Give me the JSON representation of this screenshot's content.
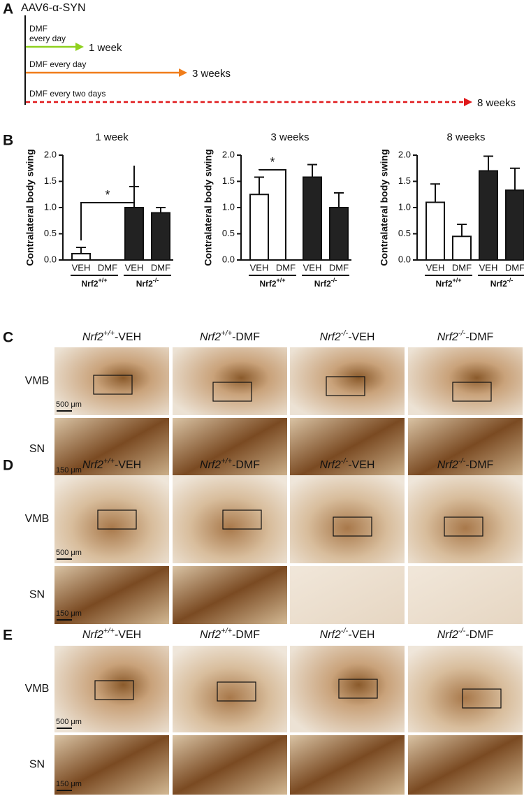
{
  "timeline": {
    "label": "A",
    "vector": "AAV6-α-SYN",
    "arrows": [
      {
        "treatment": [
          "DMF",
          "every day"
        ],
        "duration": "1 week",
        "color": "#8fd11f"
      },
      {
        "treatment": [
          "DMF every day"
        ],
        "duration": "3 weeks",
        "color": "#f07d1a"
      },
      {
        "treatment": [
          "DMF every two days"
        ],
        "duration": "8 weeks",
        "color": "#e0191b",
        "dashed": true
      }
    ]
  },
  "bar_panel_label": "B",
  "chart_data": [
    {
      "type": "bar",
      "title": "1 week",
      "y_label": "Contralateral body swing",
      "categories": [
        "VEH",
        "DMF",
        "VEH",
        "DMF"
      ],
      "values": [
        0.12,
        0,
        1.0,
        0.9
      ],
      "errors": [
        0.12,
        0,
        0.4,
        0.1
      ],
      "colors": [
        "#ffffff",
        "#ffffff",
        "#222222",
        "#222222"
      ],
      "groups": [
        {
          "name": "Nrf2",
          "sup": "+/+"
        },
        {
          "name": "Nrf2",
          "sup": "-/-"
        }
      ],
      "annotations": [
        "*"
      ],
      "ylim": [
        0,
        2
      ],
      "yticks": [
        {
          "value": 0,
          "label": "0.0"
        },
        {
          "value": 0.5,
          "label": "0.5"
        },
        {
          "value": 1,
          "label": "1.0"
        },
        {
          "value": 1.5,
          "label": "1.5"
        },
        {
          "value": 2,
          "label": "2.0"
        }
      ]
    },
    {
      "type": "bar",
      "title": "3 weeks",
      "y_label": "Contralateral body swing",
      "categories": [
        "VEH",
        "DMF",
        "VEH",
        "DMF"
      ],
      "values": [
        1.25,
        0,
        1.58,
        1.0
      ],
      "errors": [
        0.33,
        0,
        0.24,
        0.28
      ],
      "colors": [
        "#ffffff",
        "#ffffff",
        "#222222",
        "#222222"
      ],
      "groups": [
        {
          "name": "Nrf2",
          "sup": "+/+"
        },
        {
          "name": "Nrf2",
          "sup": "-/-"
        }
      ],
      "annotations": [
        "*"
      ],
      "ylim": [
        0,
        2
      ],
      "yticks": [
        {
          "value": 0,
          "label": "0.0"
        },
        {
          "value": 0.5,
          "label": "0.5"
        },
        {
          "value": 1,
          "label": "1.0"
        },
        {
          "value": 1.5,
          "label": "1.5"
        },
        {
          "value": 2,
          "label": "2.0"
        }
      ]
    },
    {
      "type": "bar",
      "title": "8 weeks",
      "y_label": "Contralateral body swing",
      "categories": [
        "VEH",
        "DMF",
        "VEH",
        "DMF"
      ],
      "values": [
        1.1,
        0.45,
        1.7,
        1.33
      ],
      "errors": [
        0.35,
        0.23,
        0.28,
        0.42
      ],
      "colors": [
        "#ffffff",
        "#ffffff",
        "#222222",
        "#222222"
      ],
      "groups": [
        {
          "name": "Nrf2",
          "sup": "+/+"
        },
        {
          "name": "Nrf2",
          "sup": "-/-"
        }
      ],
      "annotations": [],
      "ylim": [
        0,
        2
      ],
      "yticks": [
        {
          "value": 0,
          "label": "0.0"
        },
        {
          "value": 0.5,
          "label": "0.5"
        },
        {
          "value": 1,
          "label": "1.0"
        },
        {
          "value": 1.5,
          "label": "1.5"
        },
        {
          "value": 2,
          "label": "2.0"
        }
      ]
    }
  ],
  "image_panels": [
    {
      "label": "C",
      "columns": [
        {
          "gene": "Nrf2",
          "sup": "+/+",
          "suffix": "-VEH"
        },
        {
          "gene": "Nrf2",
          "sup": "+/+",
          "suffix": "-DMF"
        },
        {
          "gene": "Nrf2",
          "sup": "-/-",
          "suffix": "-VEH"
        },
        {
          "gene": "Nrf2",
          "sup": "-/-",
          "suffix": "-DMF"
        }
      ],
      "rows": [
        "VMB",
        "SN"
      ],
      "scale_bars": [
        "500 μm",
        "150 μm"
      ]
    },
    {
      "label": "D",
      "columns": [
        {
          "gene": "Nrf2",
          "sup": "+/+",
          "suffix": "-VEH"
        },
        {
          "gene": "Nrf2",
          "sup": "+/+",
          "suffix": "-DMF"
        },
        {
          "gene": "Nrf2",
          "sup": "-/-",
          "suffix": "-VEH"
        },
        {
          "gene": "Nrf2",
          "sup": "-/-",
          "suffix": "-DMF"
        }
      ],
      "rows": [
        "VMB",
        "SN"
      ],
      "scale_bars": [
        "500 μm",
        "150 μm"
      ]
    },
    {
      "label": "E",
      "columns": [
        {
          "gene": "Nrf2",
          "sup": "+/+",
          "suffix": "-VEH"
        },
        {
          "gene": "Nrf2",
          "sup": "+/+",
          "suffix": "-DMF"
        },
        {
          "gene": "Nrf2",
          "sup": "-/-",
          "suffix": "-VEH"
        },
        {
          "gene": "Nrf2",
          "sup": "-/-",
          "suffix": "-DMF"
        }
      ],
      "rows": [
        "VMB",
        "SN"
      ],
      "scale_bars": [
        "500 μm",
        "150 μm"
      ]
    }
  ]
}
